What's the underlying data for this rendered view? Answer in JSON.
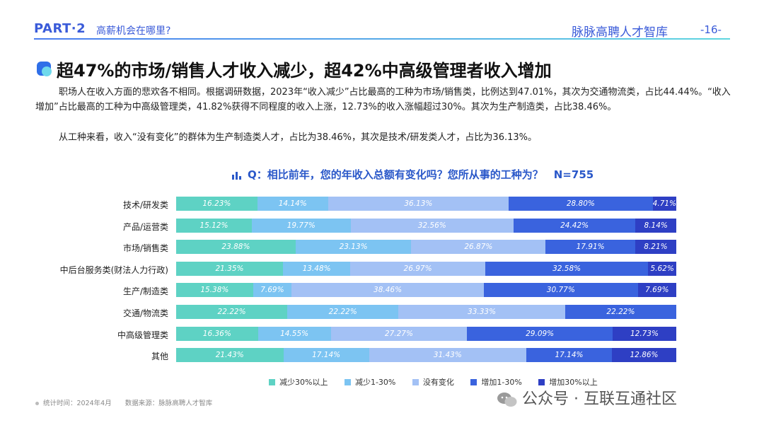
{
  "header": {
    "part": "PART·2",
    "part_subtitle": "高薪机会在哪里?",
    "brand": "脉脉高聘人才智库",
    "page_number": "-16-"
  },
  "title": "超47%的市场/销售人才收入减少，超42%中高级管理者收入增加",
  "paragraphs": [
    "职场人在收入方面的悲欢各不相同。根据调研数据，2023年“收入减少”占比最高的工种为市场/销售类，比例达到47.01%，其次为交通物流类，占比44.44%。“收入增加”占比最高的工种为中高级管理类，41.82%获得不同程度的收入上涨，12.73%的收入涨幅超过30%。其次为生产制造类，占比38.46%。",
    "从工种来看，收入“没有变化”的群体为生产制造类人才，占比为38.46%，其次是技术/研发类人才，占比为36.13%。"
  ],
  "colors": [
    "#5ed2c4",
    "#7cc4f2",
    "#a3c1f5",
    "#3a63de",
    "#2e3fc4"
  ],
  "chart_data": {
    "type": "bar",
    "orientation": "horizontal",
    "stacked": true,
    "title": "Q：相比前年，您的年收入总额有变化吗？您所从事的工种为？　N=755",
    "categories": [
      "技术/研发类",
      "产品/运营类",
      "市场/销售类",
      "中后台服务类(财法人力行政)",
      "生产/制造类",
      "交通/物流类",
      "中高级管理类",
      "其他"
    ],
    "value_labels": [
      [
        "16.23%",
        "14.14%",
        "36.13%",
        "28.80%",
        "4.71%"
      ],
      [
        "15.12%",
        "19.77%",
        "32.56%",
        "24.42%",
        "8.14%"
      ],
      [
        "23.88%",
        "23.13%",
        "26.87%",
        "17.91%",
        "8.21%"
      ],
      [
        "21.35%",
        "13.48%",
        "26.97%",
        "32.58%",
        "5.62%"
      ],
      [
        "15.38%",
        "7.69%",
        "38.46%",
        "30.77%",
        "7.69%"
      ],
      [
        "22.22%",
        "22.22%",
        "33.33%",
        "22.22%",
        ""
      ],
      [
        "16.36%",
        "14.55%",
        "27.27%",
        "29.09%",
        "12.73%"
      ],
      [
        "21.43%",
        "17.14%",
        "31.43%",
        "17.14%",
        "12.86%"
      ]
    ],
    "series": [
      {
        "name": "减少30%以上",
        "values": [
          16.23,
          15.12,
          23.88,
          21.35,
          15.38,
          22.22,
          16.36,
          21.43
        ]
      },
      {
        "name": "减少1-30%",
        "values": [
          14.14,
          19.77,
          23.13,
          13.48,
          7.69,
          22.22,
          14.55,
          17.14
        ]
      },
      {
        "name": "没有变化",
        "values": [
          36.13,
          32.56,
          26.87,
          26.97,
          38.46,
          33.33,
          27.27,
          31.43
        ]
      },
      {
        "name": "增加1-30%",
        "values": [
          28.8,
          24.42,
          17.91,
          32.58,
          30.77,
          22.22,
          29.09,
          17.14
        ]
      },
      {
        "name": "增加30%以上",
        "values": [
          4.71,
          8.14,
          8.21,
          5.62,
          7.69,
          0,
          12.73,
          12.86
        ]
      }
    ],
    "xlim": [
      0,
      100
    ],
    "legend": "bottom"
  },
  "footer": {
    "note": "统计时间：2024年4月　　数据来源：脉脉高聘人才智库",
    "watermark": "公众号 · 互联互通社区"
  }
}
